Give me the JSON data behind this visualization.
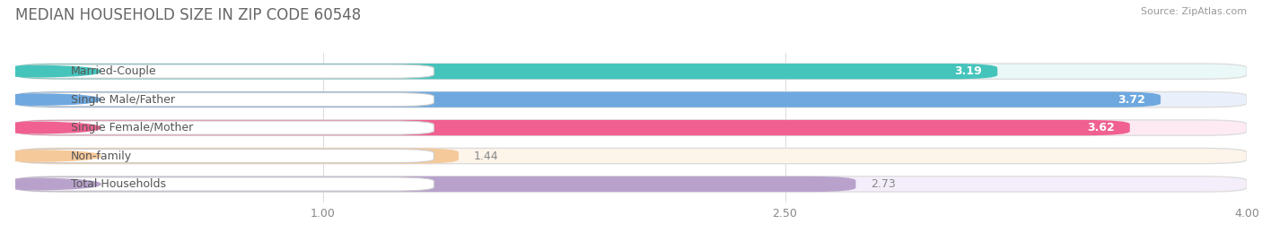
{
  "title": "MEDIAN HOUSEHOLD SIZE IN ZIP CODE 60548",
  "source": "Source: ZipAtlas.com",
  "categories": [
    "Married-Couple",
    "Single Male/Father",
    "Single Female/Mother",
    "Non-family",
    "Total Households"
  ],
  "values": [
    3.19,
    3.72,
    3.62,
    1.44,
    2.73
  ],
  "bar_colors": [
    "#45c4bc",
    "#6ea8df",
    "#f06090",
    "#f5c99a",
    "#b8a2cc"
  ],
  "bar_bg_colors": [
    "#eaf8f7",
    "#eaf0fb",
    "#fdeaf3",
    "#fdf4ea",
    "#f4eefb"
  ],
  "dot_colors": [
    "#45c4bc",
    "#6ea8df",
    "#f06090",
    "#f5c99a",
    "#b8a2cc"
  ],
  "xlim": [
    0,
    4.0
  ],
  "xmin": 0,
  "xticks": [
    1.0,
    2.5,
    4.0
  ],
  "value_label_color": [
    "white",
    "white",
    "white",
    "#888888",
    "#888888"
  ],
  "background_color": "#ffffff",
  "title_fontsize": 12,
  "title_color": "#666666",
  "bar_height": 0.55,
  "label_fontsize": 9,
  "value_fontsize": 9,
  "source_fontsize": 8,
  "source_color": "#999999",
  "label_text_color": "#555555",
  "grid_color": "#dddddd",
  "tick_color": "#888888"
}
